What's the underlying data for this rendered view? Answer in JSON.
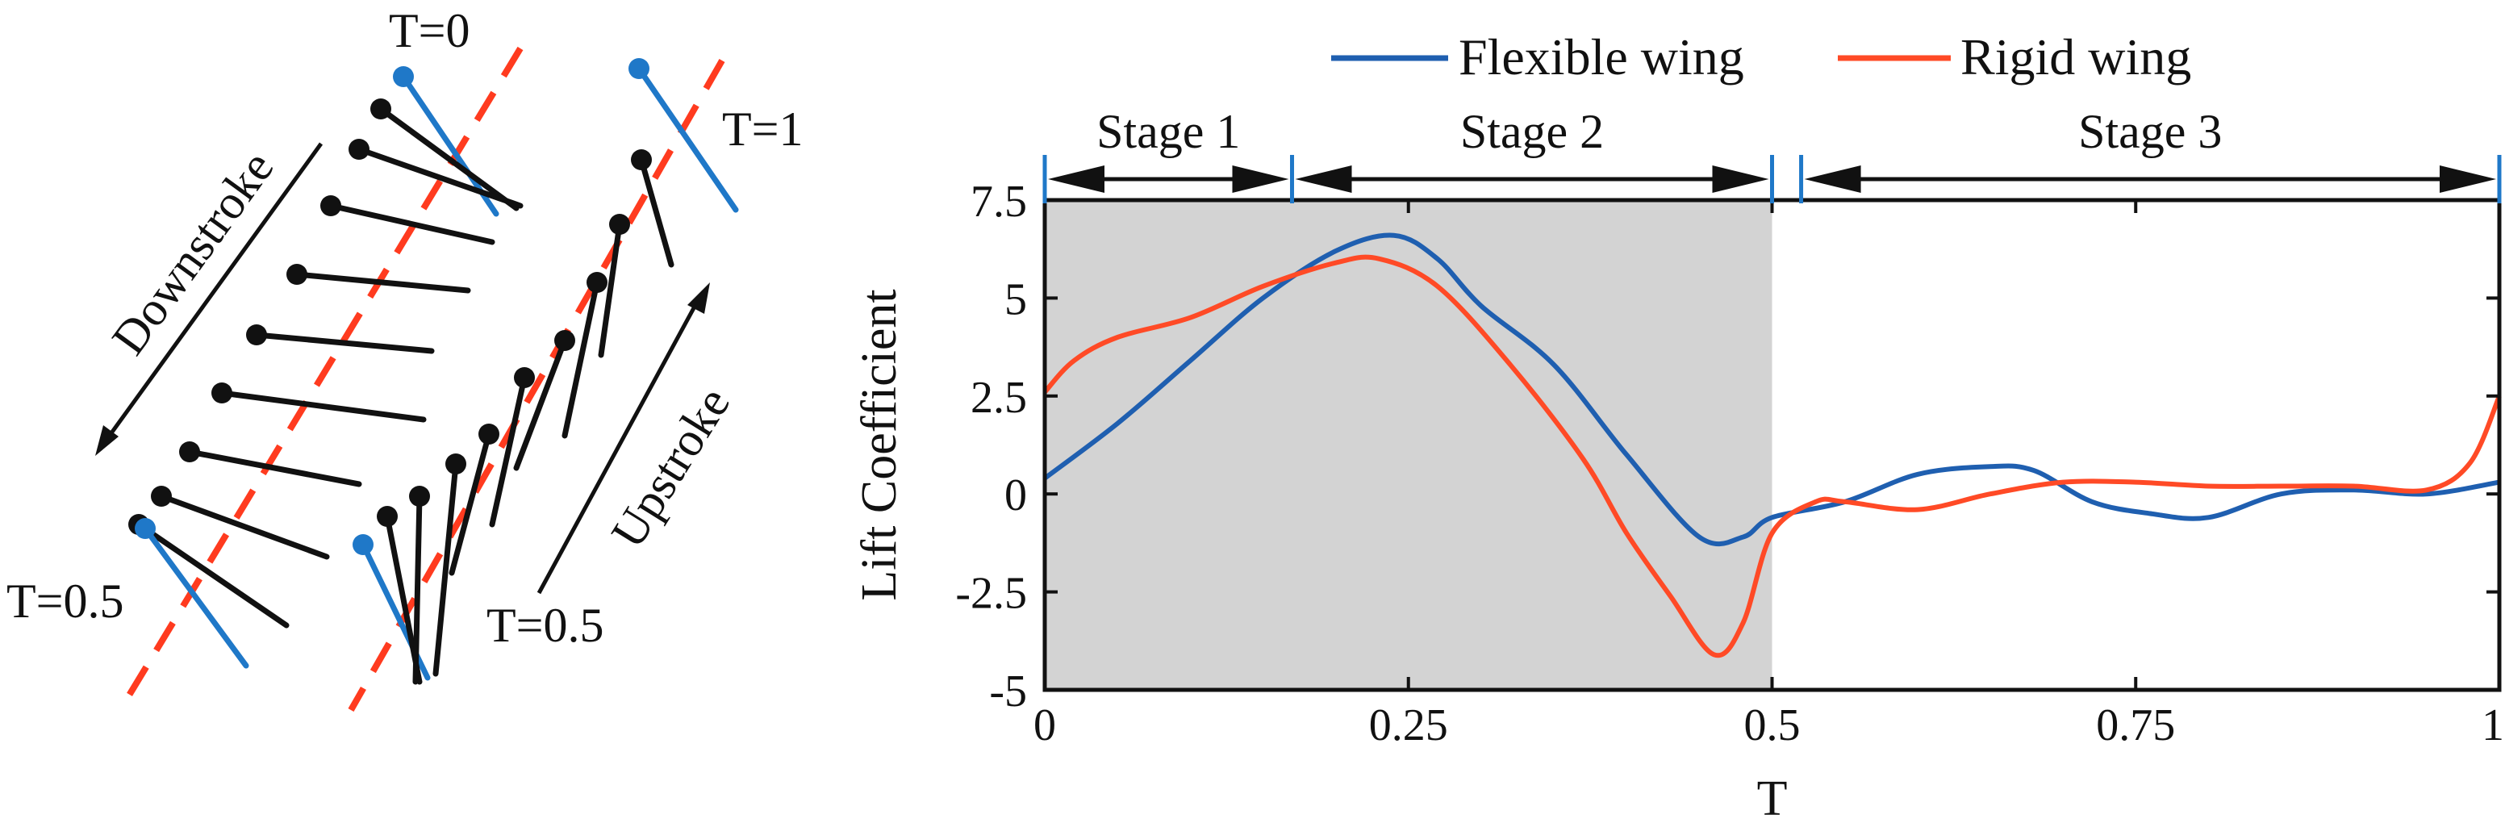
{
  "sketch": {
    "labels": {
      "t0": "T=0",
      "t1": "T=1",
      "t05_left": "T=0.5",
      "t05_right": "T=0.5",
      "downstroke": "Downstroke",
      "upstroke": "Upstroke"
    },
    "colors": {
      "stroke_plane": "#ff3b1f",
      "wing_section": "#111111",
      "reversal_section": "#1f78c8"
    }
  },
  "stages": {
    "labels": [
      "Stage 1",
      "Stage 2",
      "Stage 3"
    ],
    "boundaries_T": [
      0,
      0.17,
      0.5,
      0.52,
      1.0
    ]
  },
  "chart_data": {
    "type": "line",
    "title": "",
    "xlabel": "T",
    "ylabel": "Lift Coefficient",
    "xlim": [
      0,
      1
    ],
    "ylim": [
      -5,
      7.5
    ],
    "xticks": [
      0,
      0.25,
      0.5,
      0.75,
      1
    ],
    "xtick_labels": [
      "0",
      "0.25",
      "0.5",
      "0.75",
      "1"
    ],
    "yticks": [
      -5,
      -2.5,
      0,
      2.5,
      5,
      7.5
    ],
    "ytick_labels": [
      "-5",
      "-2.5",
      "0",
      "2.5",
      "5",
      "7.5"
    ],
    "grid": false,
    "legend_position": "top",
    "shaded_region_T": [
      0,
      0.5
    ],
    "shaded_color": "#d3d3d3",
    "series": [
      {
        "name": "Flexible wing",
        "color": "#1f5fb0",
        "x": [
          0,
          0.05,
          0.1,
          0.15,
          0.2,
          0.24,
          0.27,
          0.3,
          0.35,
          0.4,
          0.45,
          0.48,
          0.5,
          0.55,
          0.6,
          0.65,
          0.68,
          0.72,
          0.76,
          0.8,
          0.85,
          0.9,
          0.95,
          1.0
        ],
        "y": [
          0.4,
          1.8,
          3.4,
          5.0,
          6.2,
          6.6,
          6.0,
          4.8,
          3.3,
          1.0,
          -1.1,
          -1.1,
          -0.6,
          -0.2,
          0.5,
          0.7,
          0.6,
          -0.2,
          -0.5,
          -0.6,
          0.0,
          0.1,
          0.0,
          0.3
        ]
      },
      {
        "name": "Rigid wing",
        "color": "#ff4a26",
        "x": [
          0,
          0.02,
          0.05,
          0.1,
          0.15,
          0.2,
          0.23,
          0.27,
          0.32,
          0.37,
          0.4,
          0.43,
          0.46,
          0.48,
          0.5,
          0.53,
          0.55,
          0.6,
          0.65,
          0.7,
          0.75,
          0.8,
          0.85,
          0.9,
          0.95,
          0.98,
          1.0
        ],
        "y": [
          2.6,
          3.4,
          4.0,
          4.5,
          5.3,
          5.9,
          6.0,
          5.3,
          3.3,
          0.9,
          -1.0,
          -2.6,
          -4.1,
          -3.3,
          -1.0,
          -0.2,
          -0.2,
          -0.4,
          0.0,
          0.3,
          0.3,
          0.2,
          0.2,
          0.2,
          0.1,
          0.8,
          2.5
        ]
      }
    ]
  }
}
